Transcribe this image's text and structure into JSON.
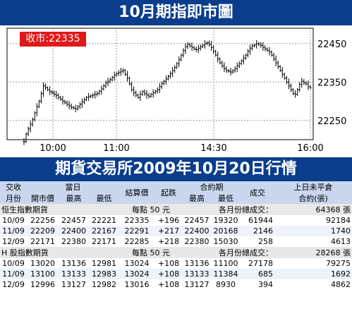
{
  "title": "10月期指即市圖",
  "close_label": "收市:22335",
  "chart_data": {
    "type": "candlestick",
    "y_ticks": [
      "22450",
      "22350",
      "22250"
    ],
    "x_ticks": [
      "10:00",
      "11:00",
      "14:30",
      "16:00"
    ],
    "ylim": [
      22200,
      22490
    ],
    "grid": true,
    "close": 22335,
    "prices": [
      22195,
      22215,
      22228,
      22240,
      22252,
      22270,
      22286,
      22300,
      22320,
      22340,
      22335,
      22330,
      22325,
      22322,
      22318,
      22315,
      22310,
      22305,
      22300,
      22296,
      22292,
      22288,
      22284,
      22282,
      22280,
      22286,
      22292,
      22298,
      22304,
      22310,
      22312,
      22314,
      22316,
      22318,
      22320,
      22326,
      22332,
      22340,
      22348,
      22352,
      22356,
      22362,
      22368,
      22372,
      22375,
      22378,
      22380,
      22370,
      22360,
      22345,
      22330,
      22322,
      22316,
      22310,
      22318,
      22325,
      22320,
      22316,
      22313,
      22318,
      22322,
      22326,
      22330,
      22338,
      22346,
      22352,
      22358,
      22365,
      22372,
      22380,
      22388,
      22398,
      22408,
      22420,
      22432,
      22442,
      22448,
      22444,
      22440,
      22436,
      22434,
      22438,
      22442,
      22446,
      22450,
      22452,
      22448,
      22440,
      22430,
      22420,
      22410,
      22400,
      22392,
      22385,
      22380,
      22378,
      22376,
      22380,
      22385,
      22392,
      22398,
      22405,
      22412,
      22420,
      22430,
      22438,
      22444,
      22446,
      22450,
      22448,
      22445,
      22440,
      22436,
      22432,
      22428,
      22420,
      22410,
      22400,
      22390,
      22380,
      22370,
      22360,
      22350,
      22340,
      22330,
      22320,
      22318,
      22330,
      22344,
      22352,
      22348,
      22345,
      22338,
      22335
    ]
  },
  "section_title": "期貨交易所2009年10月20日行情",
  "table": {
    "head1": [
      "交收",
      "當日",
      "結算價",
      "起跌",
      "合約期",
      "成交",
      "上日未平倉"
    ],
    "head2": [
      "月份",
      "開市價",
      "最高",
      "最低",
      "最高",
      "最低",
      "合約(張)"
    ],
    "sections": [
      {
        "name": "恒生指數期貨",
        "unit": "每點 50 元",
        "summary_label": "各月份總成交：",
        "summary_value": "64368 張",
        "rows": [
          [
            "10/09",
            "22256",
            "22457",
            "22221",
            "22335",
            "+196",
            "22457",
            "19320",
            "61944",
            "92184"
          ],
          [
            "11/09",
            "22209",
            "22400",
            "22167",
            "22291",
            "+217",
            "22400",
            "20168",
            "2146",
            "1740"
          ],
          [
            "12/09",
            "22171",
            "22380",
            "22171",
            "22285",
            "+218",
            "22380",
            "15030",
            "258",
            "4613"
          ]
        ]
      },
      {
        "name": "H 股指數期貨",
        "unit": "每點 50 元",
        "summary_label": "各月份總成交：",
        "summary_value": "28268 張",
        "rows": [
          [
            "10/09",
            "13020",
            "13136",
            "12981",
            "13024",
            "+108",
            "13136",
            "11100",
            "27178",
            "79275"
          ],
          [
            "11/09",
            "13100",
            "13133",
            "12983",
            "13024",
            "+108",
            "13133",
            "11384",
            "685",
            "1692"
          ],
          [
            "12/09",
            "12996",
            "13127",
            "12982",
            "13016",
            "+108",
            "13127",
            "8930",
            "394",
            "4862"
          ]
        ]
      }
    ]
  }
}
